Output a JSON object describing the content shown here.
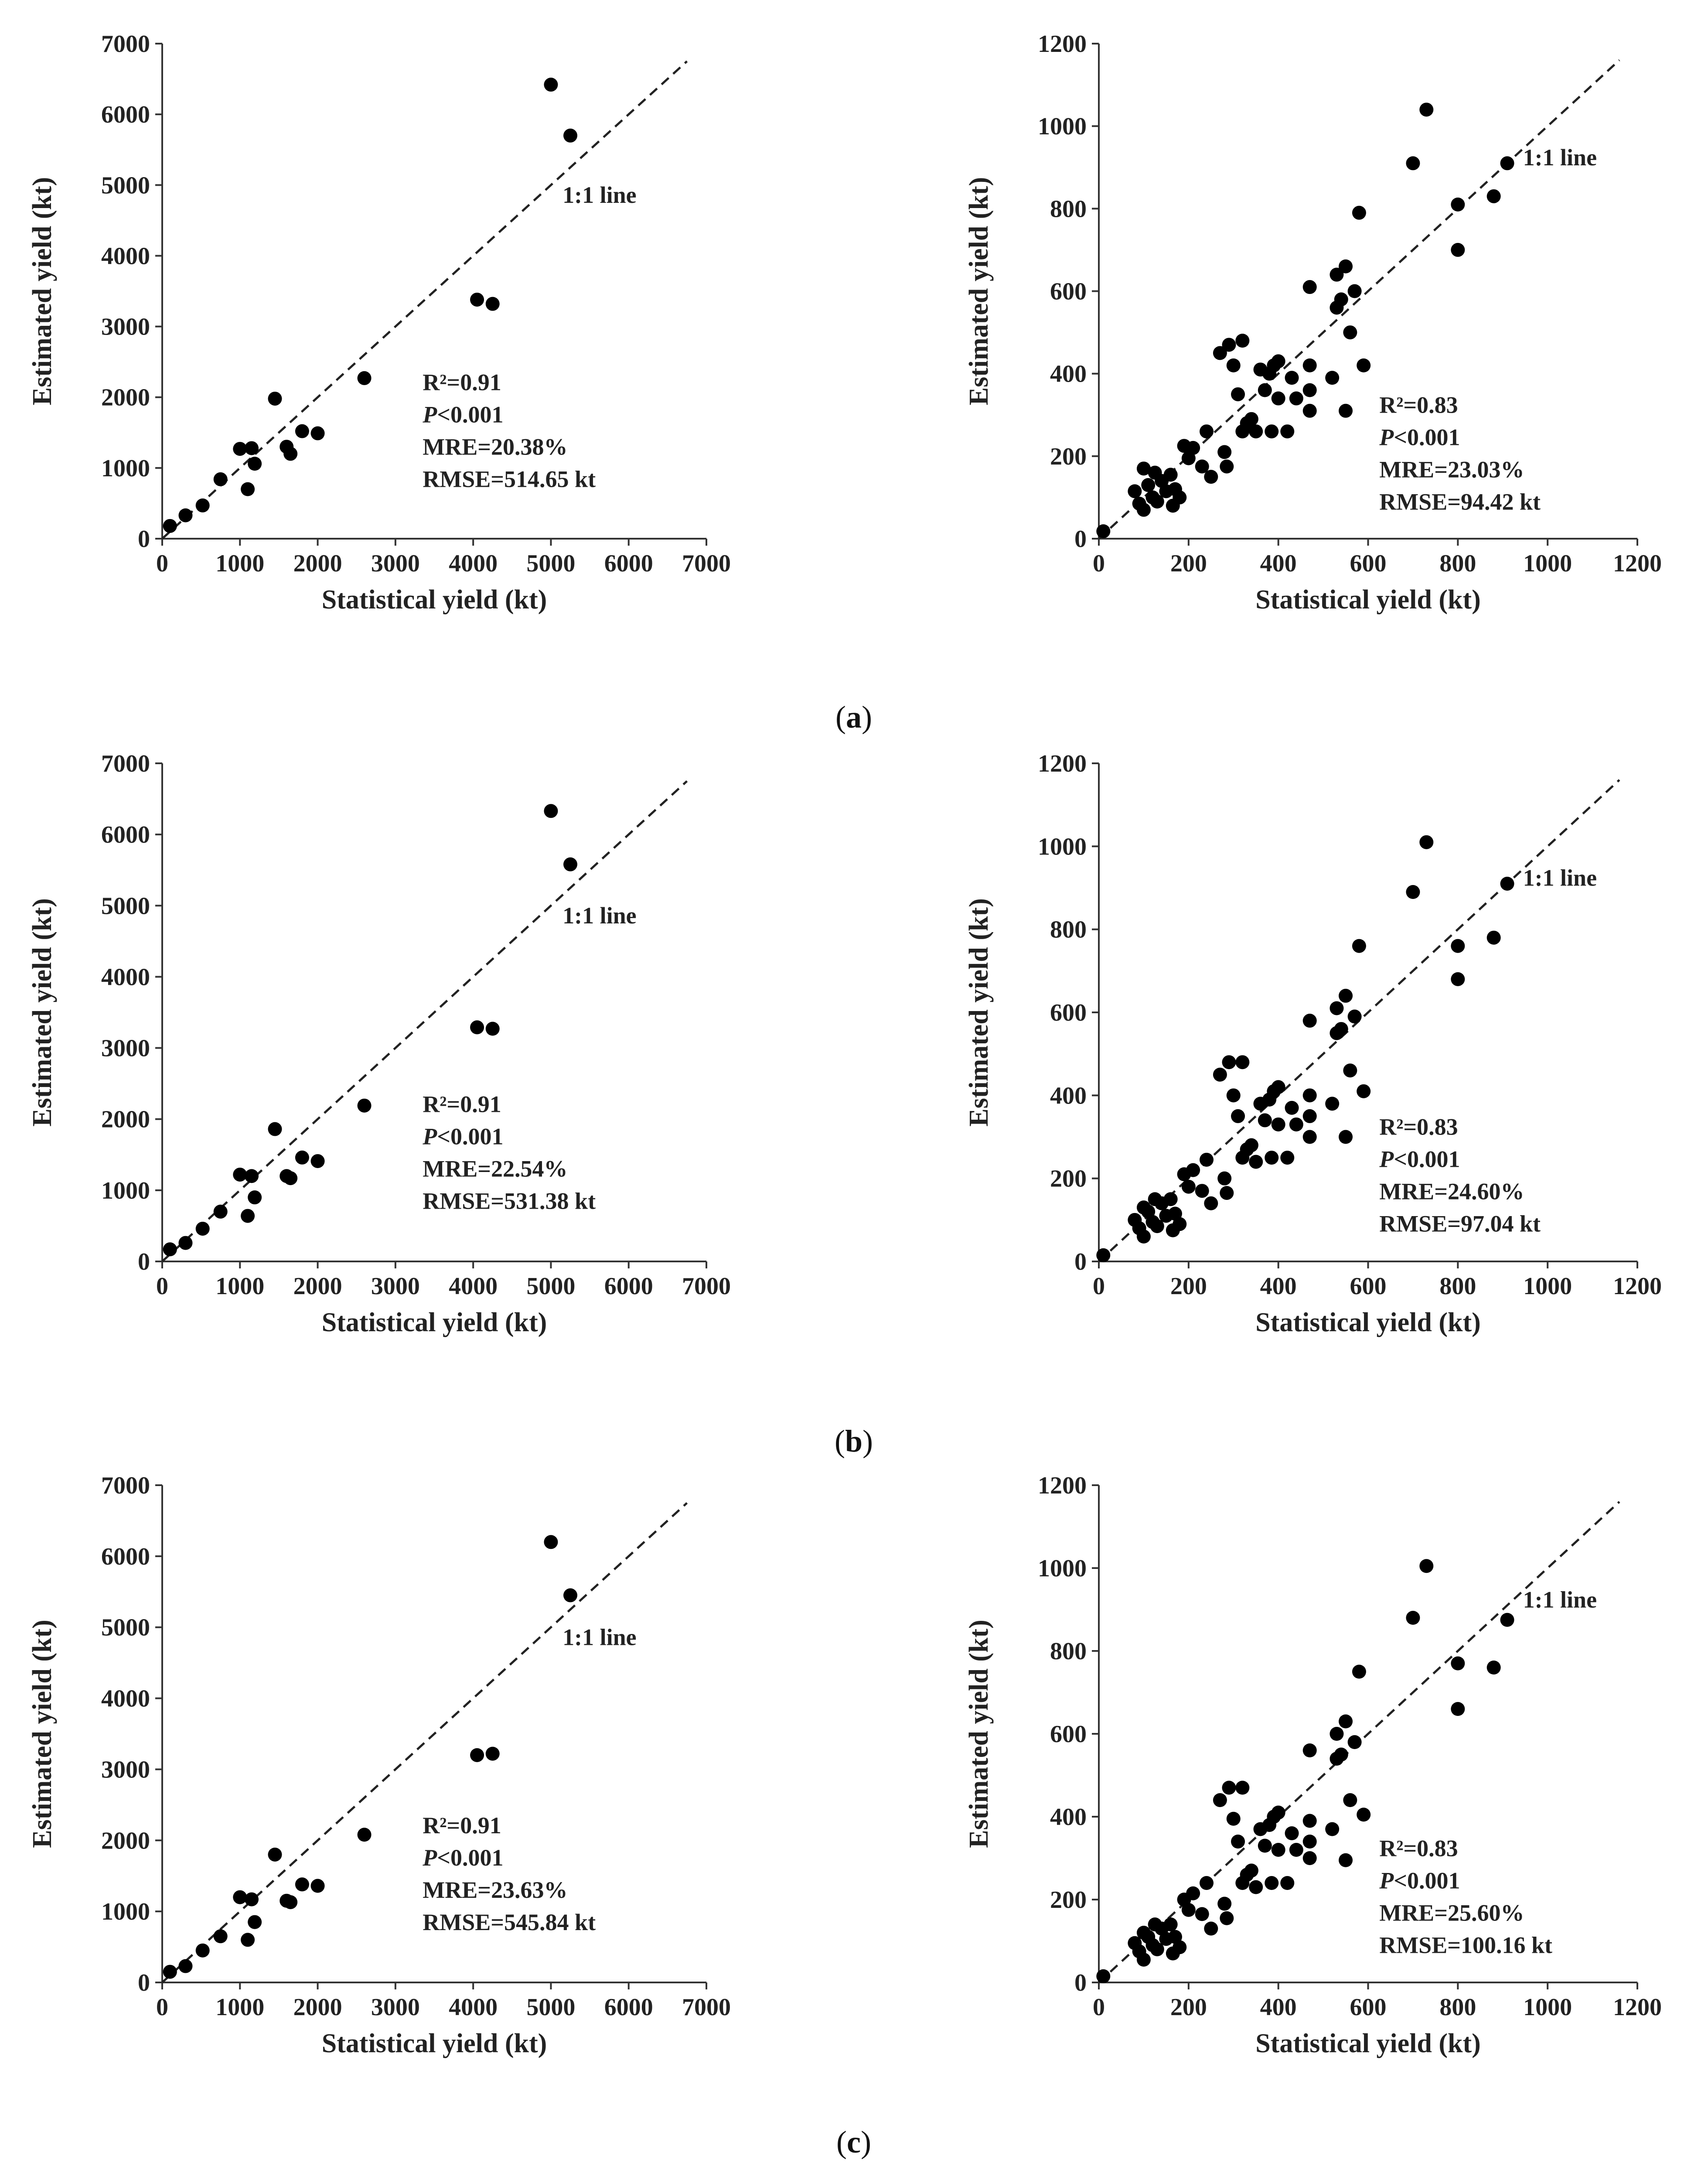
{
  "captions": [
    "a",
    "b",
    "c"
  ],
  "chart_data": [
    {
      "type": "scatter",
      "id": "a-left",
      "row": 0,
      "col": 0,
      "xlabel": "Statistical yield (kt)",
      "ylabel": "Estimated yield (kt)",
      "xlim": [
        0,
        7000
      ],
      "ylim": [
        0,
        7000
      ],
      "xticks": [
        "0",
        "1000",
        "2000",
        "3000",
        "4000",
        "5000",
        "6000",
        "7000"
      ],
      "yticks": [
        "0",
        "1000",
        "2000",
        "3000",
        "4000",
        "5000",
        "6000",
        "7000"
      ],
      "ref_line": {
        "label": "1:1 line",
        "from": [
          0,
          0
        ],
        "to": [
          6750,
          6750
        ]
      },
      "stats": {
        "r2": "R²=0.91",
        "p": "P<0.001",
        "mre": "MRE=20.38%",
        "rmse": "RMSE=514.65 kt"
      },
      "points": [
        [
          100,
          180
        ],
        [
          300,
          330
        ],
        [
          520,
          470
        ],
        [
          750,
          840
        ],
        [
          1000,
          1270
        ],
        [
          1100,
          700
        ],
        [
          1150,
          1280
        ],
        [
          1190,
          1060
        ],
        [
          1450,
          1980
        ],
        [
          1600,
          1300
        ],
        [
          1650,
          1200
        ],
        [
          1800,
          1520
        ],
        [
          2000,
          1490
        ],
        [
          2600,
          2270
        ],
        [
          4050,
          3380
        ],
        [
          4250,
          3320
        ],
        [
          5000,
          6420
        ],
        [
          5250,
          5700
        ]
      ]
    },
    {
      "type": "scatter",
      "id": "a-right",
      "row": 0,
      "col": 1,
      "xlabel": "Statistical yield (kt)",
      "ylabel": "Estimated yield (kt)",
      "xlim": [
        0,
        1200
      ],
      "ylim": [
        0,
        1200
      ],
      "xticks": [
        "0",
        "200",
        "400",
        "600",
        "800",
        "1000",
        "1200"
      ],
      "yticks": [
        "0",
        "200",
        "400",
        "600",
        "800",
        "1000",
        "1200"
      ],
      "ref_line": {
        "label": "1:1 line",
        "from": [
          0,
          0
        ],
        "to": [
          1160,
          1160
        ]
      },
      "stats": {
        "r2": "R²=0.83",
        "p": "P<0.001",
        "mre": "MRE=23.03%",
        "rmse": "RMSE=94.42 kt"
      },
      "points": [
        [
          10,
          18
        ],
        [
          80,
          115
        ],
        [
          90,
          85
        ],
        [
          100,
          170
        ],
        [
          100,
          70
        ],
        [
          110,
          130
        ],
        [
          120,
          100
        ],
        [
          125,
          160
        ],
        [
          130,
          90
        ],
        [
          140,
          140
        ],
        [
          150,
          115
        ],
        [
          160,
          155
        ],
        [
          165,
          80
        ],
        [
          170,
          120
        ],
        [
          180,
          100
        ],
        [
          190,
          225
        ],
        [
          200,
          195
        ],
        [
          210,
          220
        ],
        [
          230,
          175
        ],
        [
          240,
          260
        ],
        [
          250,
          150
        ],
        [
          270,
          450
        ],
        [
          280,
          210
        ],
        [
          285,
          175
        ],
        [
          290,
          470
        ],
        [
          300,
          420
        ],
        [
          310,
          350
        ],
        [
          320,
          480
        ],
        [
          320,
          260
        ],
        [
          330,
          280
        ],
        [
          340,
          290
        ],
        [
          350,
          260
        ],
        [
          360,
          410
        ],
        [
          370,
          360
        ],
        [
          380,
          400
        ],
        [
          385,
          260
        ],
        [
          390,
          420
        ],
        [
          400,
          430
        ],
        [
          400,
          340
        ],
        [
          420,
          260
        ],
        [
          430,
          390
        ],
        [
          440,
          340
        ],
        [
          470,
          610
        ],
        [
          470,
          420
        ],
        [
          470,
          360
        ],
        [
          470,
          310
        ],
        [
          520,
          390
        ],
        [
          530,
          640
        ],
        [
          530,
          560
        ],
        [
          540,
          580
        ],
        [
          550,
          660
        ],
        [
          550,
          310
        ],
        [
          560,
          500
        ],
        [
          570,
          600
        ],
        [
          580,
          790
        ],
        [
          590,
          420
        ],
        [
          700,
          910
        ],
        [
          730,
          1040
        ],
        [
          800,
          700
        ],
        [
          800,
          810
        ],
        [
          880,
          830
        ],
        [
          910,
          910
        ]
      ]
    },
    {
      "type": "scatter",
      "id": "b-left",
      "row": 1,
      "col": 0,
      "xlabel": "Statistical yield (kt)",
      "ylabel": "Estimated yield (kt)",
      "xlim": [
        0,
        7000
      ],
      "ylim": [
        0,
        7000
      ],
      "xticks": [
        "0",
        "1000",
        "2000",
        "3000",
        "4000",
        "5000",
        "6000",
        "7000"
      ],
      "yticks": [
        "0",
        "1000",
        "2000",
        "3000",
        "4000",
        "5000",
        "6000",
        "7000"
      ],
      "ref_line": {
        "label": "1:1 line",
        "from": [
          0,
          0
        ],
        "to": [
          6750,
          6750
        ]
      },
      "stats": {
        "r2": "R²=0.91",
        "p": "P<0.001",
        "mre": "MRE=22.54%",
        "rmse": "RMSE=531.38 kt"
      },
      "points": [
        [
          100,
          170
        ],
        [
          300,
          260
        ],
        [
          520,
          460
        ],
        [
          750,
          700
        ],
        [
          1000,
          1220
        ],
        [
          1100,
          640
        ],
        [
          1150,
          1200
        ],
        [
          1190,
          900
        ],
        [
          1450,
          1860
        ],
        [
          1600,
          1200
        ],
        [
          1650,
          1170
        ],
        [
          1800,
          1460
        ],
        [
          2000,
          1410
        ],
        [
          2600,
          2190
        ],
        [
          4050,
          3290
        ],
        [
          4250,
          3270
        ],
        [
          5000,
          6330
        ],
        [
          5250,
          5580
        ]
      ]
    },
    {
      "type": "scatter",
      "id": "b-right",
      "row": 1,
      "col": 1,
      "xlabel": "Statistical yield (kt)",
      "ylabel": "Estimated yield (kt)",
      "xlim": [
        0,
        1200
      ],
      "ylim": [
        0,
        1200
      ],
      "xticks": [
        "0",
        "200",
        "400",
        "600",
        "800",
        "1000",
        "1200"
      ],
      "yticks": [
        "0",
        "200",
        "400",
        "600",
        "800",
        "1000",
        "1200"
      ],
      "ref_line": {
        "label": "1:1 line",
        "from": [
          0,
          0
        ],
        "to": [
          1160,
          1160
        ]
      },
      "stats": {
        "r2": "R²=0.83",
        "p": "P<0.001",
        "mre": "MRE=24.60%",
        "rmse": "RMSE=97.04 kt"
      },
      "points": [
        [
          10,
          15
        ],
        [
          80,
          100
        ],
        [
          90,
          80
        ],
        [
          100,
          130
        ],
        [
          100,
          60
        ],
        [
          110,
          120
        ],
        [
          120,
          95
        ],
        [
          125,
          150
        ],
        [
          130,
          85
        ],
        [
          140,
          140
        ],
        [
          150,
          110
        ],
        [
          160,
          150
        ],
        [
          165,
          75
        ],
        [
          170,
          115
        ],
        [
          180,
          90
        ],
        [
          190,
          210
        ],
        [
          200,
          180
        ],
        [
          210,
          220
        ],
        [
          230,
          170
        ],
        [
          240,
          245
        ],
        [
          250,
          140
        ],
        [
          270,
          450
        ],
        [
          280,
          200
        ],
        [
          285,
          165
        ],
        [
          290,
          480
        ],
        [
          300,
          400
        ],
        [
          310,
          350
        ],
        [
          320,
          480
        ],
        [
          320,
          250
        ],
        [
          330,
          270
        ],
        [
          340,
          280
        ],
        [
          350,
          240
        ],
        [
          360,
          380
        ],
        [
          370,
          340
        ],
        [
          380,
          390
        ],
        [
          385,
          250
        ],
        [
          390,
          410
        ],
        [
          400,
          420
        ],
        [
          400,
          330
        ],
        [
          420,
          250
        ],
        [
          430,
          370
        ],
        [
          440,
          330
        ],
        [
          470,
          580
        ],
        [
          470,
          400
        ],
        [
          470,
          350
        ],
        [
          470,
          300
        ],
        [
          520,
          380
        ],
        [
          530,
          610
        ],
        [
          530,
          550
        ],
        [
          540,
          560
        ],
        [
          550,
          640
        ],
        [
          550,
          300
        ],
        [
          560,
          460
        ],
        [
          570,
          590
        ],
        [
          580,
          760
        ],
        [
          590,
          410
        ],
        [
          700,
          890
        ],
        [
          730,
          1010
        ],
        [
          800,
          680
        ],
        [
          800,
          760
        ],
        [
          880,
          780
        ],
        [
          910,
          910
        ]
      ]
    },
    {
      "type": "scatter",
      "id": "c-left",
      "row": 2,
      "col": 0,
      "xlabel": "Statistical yield (kt)",
      "ylabel": "Estimated yield (kt)",
      "xlim": [
        0,
        7000
      ],
      "ylim": [
        0,
        7000
      ],
      "xticks": [
        "0",
        "1000",
        "2000",
        "3000",
        "4000",
        "5000",
        "6000",
        "7000"
      ],
      "yticks": [
        "0",
        "1000",
        "2000",
        "3000",
        "4000",
        "5000",
        "6000",
        "7000"
      ],
      "ref_line": {
        "label": "1:1 line",
        "from": [
          0,
          0
        ],
        "to": [
          6750,
          6750
        ]
      },
      "stats": {
        "r2": "R²=0.91",
        "p": "P<0.001",
        "mre": "MRE=23.63%",
        "rmse": "RMSE=545.84 kt"
      },
      "points": [
        [
          100,
          150
        ],
        [
          300,
          230
        ],
        [
          520,
          450
        ],
        [
          750,
          650
        ],
        [
          1000,
          1200
        ],
        [
          1100,
          600
        ],
        [
          1150,
          1170
        ],
        [
          1190,
          850
        ],
        [
          1450,
          1800
        ],
        [
          1600,
          1150
        ],
        [
          1650,
          1130
        ],
        [
          1800,
          1380
        ],
        [
          2000,
          1360
        ],
        [
          2600,
          2080
        ],
        [
          4050,
          3200
        ],
        [
          4250,
          3220
        ],
        [
          5000,
          6200
        ],
        [
          5250,
          5450
        ]
      ]
    },
    {
      "type": "scatter",
      "id": "c-right",
      "row": 2,
      "col": 1,
      "xlabel": "Statistical yield (kt)",
      "ylabel": "Estimated yield (kt)",
      "xlim": [
        0,
        1200
      ],
      "ylim": [
        0,
        1200
      ],
      "xticks": [
        "0",
        "200",
        "400",
        "600",
        "800",
        "1000",
        "1200"
      ],
      "yticks": [
        "0",
        "200",
        "400",
        "600",
        "800",
        "1000",
        "1200"
      ],
      "ref_line": {
        "label": "1:1 line",
        "from": [
          0,
          0
        ],
        "to": [
          1160,
          1160
        ]
      },
      "stats": {
        "r2": "R²=0.83",
        "p": "P<0.001",
        "mre": "MRE=25.60%",
        "rmse": "RMSE=100.16 kt"
      },
      "points": [
        [
          10,
          15
        ],
        [
          80,
          95
        ],
        [
          90,
          75
        ],
        [
          100,
          120
        ],
        [
          100,
          55
        ],
        [
          110,
          110
        ],
        [
          120,
          90
        ],
        [
          125,
          140
        ],
        [
          130,
          80
        ],
        [
          140,
          130
        ],
        [
          150,
          105
        ],
        [
          160,
          140
        ],
        [
          165,
          70
        ],
        [
          170,
          110
        ],
        [
          180,
          85
        ],
        [
          190,
          200
        ],
        [
          200,
          175
        ],
        [
          210,
          215
        ],
        [
          230,
          165
        ],
        [
          240,
          240
        ],
        [
          250,
          130
        ],
        [
          270,
          440
        ],
        [
          280,
          190
        ],
        [
          285,
          155
        ],
        [
          290,
          470
        ],
        [
          300,
          395
        ],
        [
          310,
          340
        ],
        [
          320,
          470
        ],
        [
          320,
          240
        ],
        [
          330,
          260
        ],
        [
          340,
          270
        ],
        [
          350,
          230
        ],
        [
          360,
          370
        ],
        [
          370,
          330
        ],
        [
          380,
          380
        ],
        [
          385,
          240
        ],
        [
          390,
          400
        ],
        [
          400,
          410
        ],
        [
          400,
          320
        ],
        [
          420,
          240
        ],
        [
          430,
          360
        ],
        [
          440,
          320
        ],
        [
          470,
          560
        ],
        [
          470,
          390
        ],
        [
          470,
          340
        ],
        [
          470,
          300
        ],
        [
          520,
          370
        ],
        [
          530,
          600
        ],
        [
          530,
          540
        ],
        [
          540,
          550
        ],
        [
          550,
          630
        ],
        [
          550,
          295
        ],
        [
          560,
          440
        ],
        [
          570,
          580
        ],
        [
          580,
          750
        ],
        [
          590,
          405
        ],
        [
          700,
          880
        ],
        [
          730,
          1005
        ],
        [
          800,
          660
        ],
        [
          800,
          770
        ],
        [
          880,
          760
        ],
        [
          910,
          875
        ]
      ]
    }
  ]
}
